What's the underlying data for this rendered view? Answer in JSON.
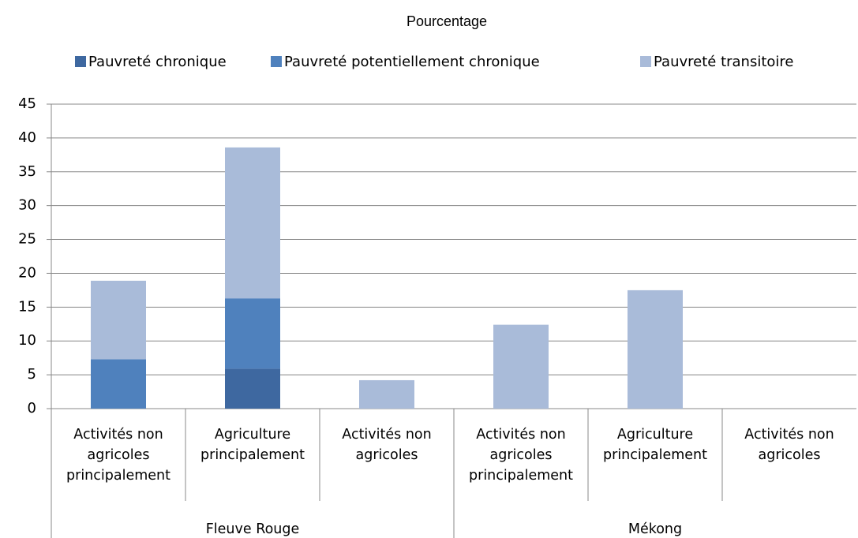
{
  "chart_data": {
    "type": "stacked_bar",
    "title": "Pourcentage",
    "categories": [
      "Activités non agricoles principalement",
      "Agriculture principalement",
      "Activités non agricoles",
      "Activités non agricoles principalement",
      "Agriculture principalement",
      "Activités non agricoles"
    ],
    "group_labels": [
      "Fleuve Rouge",
      "Mékong"
    ],
    "series": [
      {
        "name": "Pauvreté chronique",
        "color": "#3e68a0",
        "values": [
          0,
          5.9,
          0,
          0,
          0,
          0
        ]
      },
      {
        "name": "Pauvreté potentiellement chronique",
        "color": "#4f81bd",
        "values": [
          7.3,
          10.4,
          0,
          0,
          0,
          0
        ]
      },
      {
        "name": "Pauvreté transitoire",
        "color": "#a9bbd9",
        "values": [
          11.6,
          22.3,
          4.2,
          12.4,
          17.5,
          0
        ]
      }
    ],
    "ylim": [
      0,
      45
    ],
    "yticks": [
      0,
      5,
      10,
      15,
      20,
      25,
      30,
      35,
      40,
      45
    ],
    "grid": true,
    "legend": "top"
  }
}
